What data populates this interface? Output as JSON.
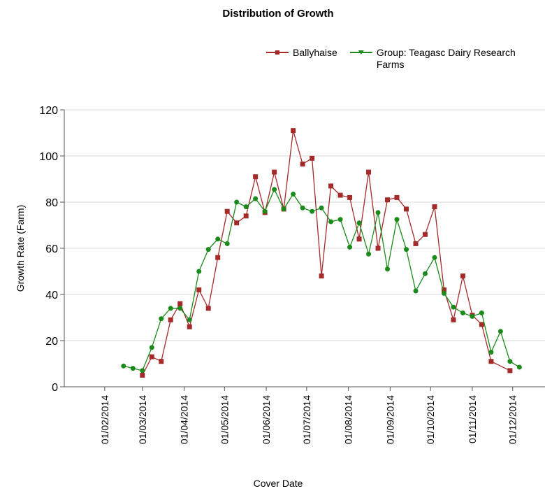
{
  "chart_data": {
    "type": "line",
    "title": "Distribution of Growth",
    "x_label": "Cover Date",
    "y_label": "Growth Rate (Farm)",
    "xlim": [
      "2014-01-02",
      "2014-12-25"
    ],
    "xticks": [
      {
        "value": "2014-02-01",
        "label": "01/02/2014"
      },
      {
        "value": "2014-03-01",
        "label": "01/03/2014"
      },
      {
        "value": "2014-04-01",
        "label": "01/04/2014"
      },
      {
        "value": "2014-05-01",
        "label": "01/05/2014"
      },
      {
        "value": "2014-06-01",
        "label": "01/06/2014"
      },
      {
        "value": "2014-07-01",
        "label": "01/07/2014"
      },
      {
        "value": "2014-08-01",
        "label": "01/08/2014"
      },
      {
        "value": "2014-09-01",
        "label": "01/09/2014"
      },
      {
        "value": "2014-10-01",
        "label": "01/10/2014"
      },
      {
        "value": "2014-11-01",
        "label": "01/11/2014"
      },
      {
        "value": "2014-12-01",
        "label": "01/12/2014"
      }
    ],
    "ylim": [
      0,
      120
    ],
    "yticks": [
      0,
      20,
      40,
      60,
      80,
      100,
      120
    ],
    "grid": true,
    "legend": "top-right",
    "series": [
      {
        "name": "Ballyhaise",
        "color": "#a52a2a",
        "marker": "square",
        "x": [
          "2014-03-01",
          "2014-03-08",
          "2014-03-15",
          "2014-03-22",
          "2014-03-29",
          "2014-04-05",
          "2014-04-12",
          "2014-04-19",
          "2014-04-26",
          "2014-05-03",
          "2014-05-10",
          "2014-05-17",
          "2014-05-24",
          "2014-05-31",
          "2014-06-07",
          "2014-06-14",
          "2014-06-21",
          "2014-06-28",
          "2014-07-05",
          "2014-07-12",
          "2014-07-19",
          "2014-07-26",
          "2014-08-02",
          "2014-08-09",
          "2014-08-16",
          "2014-08-23",
          "2014-08-30",
          "2014-09-06",
          "2014-09-13",
          "2014-09-20",
          "2014-09-27",
          "2014-10-04",
          "2014-10-11",
          "2014-10-18",
          "2014-10-25",
          "2014-11-01",
          "2014-11-08",
          "2014-11-15",
          "2014-11-29"
        ],
        "values": [
          5,
          13,
          11,
          29,
          36,
          26,
          42,
          34,
          56,
          76,
          71,
          74,
          91,
          75.5,
          93,
          77,
          111,
          96.5,
          99,
          48,
          87,
          83,
          82,
          64,
          93,
          60,
          81,
          82,
          77,
          62,
          66,
          78,
          42,
          29,
          48,
          31,
          27,
          11,
          7
        ]
      },
      {
        "name": "Group: Teagasc Dairy Research Farms",
        "color": "#1a8a1a",
        "marker": "circle",
        "x": [
          "2014-02-15",
          "2014-02-22",
          "2014-03-01",
          "2014-03-08",
          "2014-03-15",
          "2014-03-22",
          "2014-03-29",
          "2014-04-05",
          "2014-04-12",
          "2014-04-19",
          "2014-04-26",
          "2014-05-03",
          "2014-05-10",
          "2014-05-17",
          "2014-05-24",
          "2014-05-31",
          "2014-06-07",
          "2014-06-14",
          "2014-06-21",
          "2014-06-28",
          "2014-07-05",
          "2014-07-12",
          "2014-07-19",
          "2014-07-26",
          "2014-08-02",
          "2014-08-09",
          "2014-08-16",
          "2014-08-23",
          "2014-08-30",
          "2014-09-06",
          "2014-09-13",
          "2014-09-20",
          "2014-09-27",
          "2014-10-04",
          "2014-10-11",
          "2014-10-18",
          "2014-10-25",
          "2014-11-01",
          "2014-11-08",
          "2014-11-15",
          "2014-11-22",
          "2014-11-29",
          "2014-12-06"
        ],
        "values": [
          9,
          8,
          7,
          17,
          29.5,
          34,
          34,
          29,
          50,
          59.5,
          64,
          62,
          80,
          78,
          81.5,
          76,
          85.5,
          77,
          83.5,
          77.5,
          76,
          77.5,
          71.5,
          72.5,
          60.5,
          71,
          57.5,
          75.5,
          51,
          72.5,
          59.5,
          41.5,
          49,
          56,
          40.5,
          34.5,
          32,
          30.5,
          32,
          15,
          24,
          11,
          8.5
        ]
      }
    ]
  }
}
